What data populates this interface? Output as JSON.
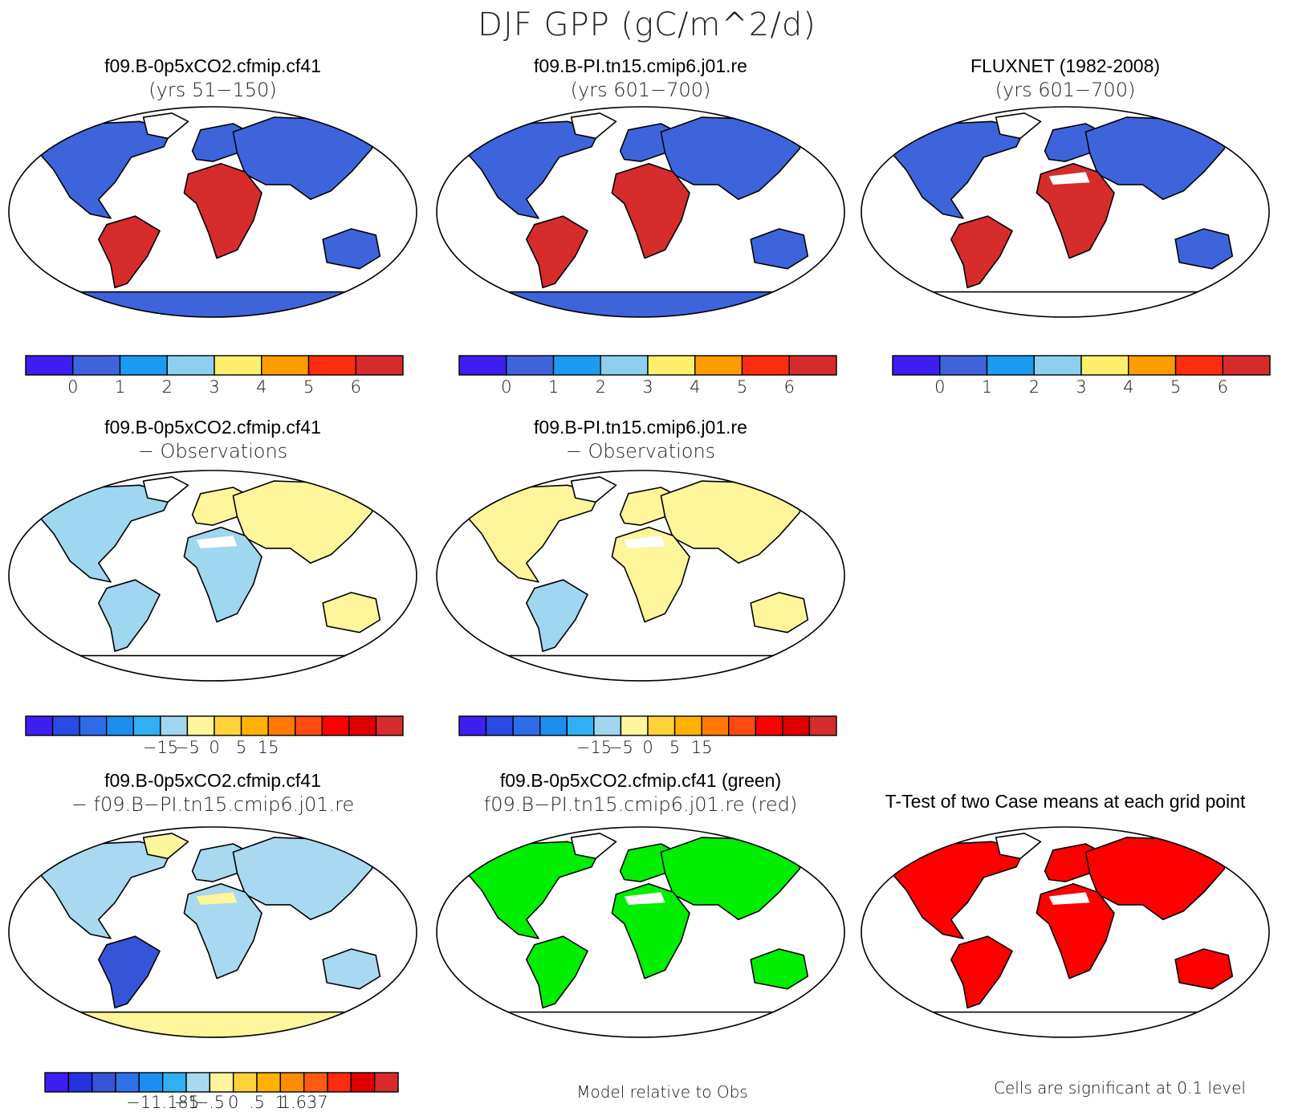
{
  "title": "DJF GPP (gC/m^2/d)",
  "palettes": {
    "abs": [
      "#3e1ef0",
      "#3e64dc",
      "#1c9bf0",
      "#8ccfee",
      "#fbef6b",
      "#ff9c00",
      "#ff2d10",
      "#d62c2c"
    ],
    "diff": [
      "#3e1ef0",
      "#2a4ae6",
      "#2d6be8",
      "#1c8ef0",
      "#2fb0f4",
      "#9fd6f0",
      "#fff59a",
      "#ffd23a",
      "#ffb100",
      "#ff7a00",
      "#ff4a10",
      "#ff0000",
      "#e00000",
      "#d62c2c"
    ],
    "rel": [
      "#3e1ef0",
      "#2432e0",
      "#3654d8",
      "#2d72e6",
      "#1c8ef0",
      "#2fb0f4",
      "#a8d9f0",
      "#fff59a",
      "#ffd23a",
      "#ffb100",
      "#ff8c00",
      "#ff5a10",
      "#ff2a10",
      "#e00000",
      "#d62c2c"
    ]
  },
  "chart_data": [
    {
      "type": "heatmap",
      "title": "f09.B-0p5xCO2.cfmip.cf41",
      "subtitle": "(yrs 51−150)",
      "colorbar": {
        "palette": "abs",
        "ticks": [
          "0",
          "1",
          "2",
          "3",
          "4",
          "5",
          "6"
        ]
      },
      "fills": {
        "na": "#3e64dc",
        "sa": "#d62c2c",
        "eu": "#3e64dc",
        "af": "#d62c2c",
        "as": "#3e64dc",
        "au": "#3e64dc",
        "gr": "#ffffff",
        "ant": "#3e64dc",
        "sah": null
      }
    },
    {
      "type": "heatmap",
      "title": "f09.B-PI.tn15.cmip6.j01.re",
      "subtitle": "(yrs 601−700)",
      "colorbar": {
        "palette": "abs",
        "ticks": [
          "0",
          "1",
          "2",
          "3",
          "4",
          "5",
          "6"
        ]
      },
      "fills": {
        "na": "#3e64dc",
        "sa": "#d62c2c",
        "eu": "#3e64dc",
        "af": "#d62c2c",
        "as": "#3e64dc",
        "au": "#3e64dc",
        "gr": "#ffffff",
        "ant": "#3e64dc",
        "sah": null
      }
    },
    {
      "type": "heatmap",
      "title": "FLUXNET (1982-2008)",
      "subtitle": "(yrs 601−700)",
      "colorbar": {
        "palette": "abs",
        "ticks": [
          "0",
          "1",
          "2",
          "3",
          "4",
          "5",
          "6"
        ]
      },
      "fills": {
        "na": "#3e64dc",
        "sa": "#d62c2c",
        "eu": "#3e64dc",
        "af": "#d62c2c",
        "as": "#3e64dc",
        "au": "#3e64dc",
        "gr": "#ffffff",
        "ant": "#ffffff",
        "sah": "#ffffff"
      }
    },
    {
      "type": "heatmap",
      "title": "f09.B-0p5xCO2.cfmip.cf41",
      "subtitle": "− Observations",
      "colorbar": {
        "palette": "diff",
        "ticks": [
          "−15",
          "−5",
          "0",
          "5",
          "15"
        ]
      },
      "fills": {
        "na": "#9fd6f0",
        "sa": "#9fd6f0",
        "eu": "#fff59a",
        "af": "#9fd6f0",
        "as": "#fff59a",
        "au": "#fff59a",
        "gr": "#ffffff",
        "ant": "#ffffff",
        "sah": "#ffffff"
      }
    },
    {
      "type": "heatmap",
      "title": "f09.B-PI.tn15.cmip6.j01.re",
      "subtitle": "− Observations",
      "colorbar": {
        "palette": "diff",
        "ticks": [
          "−15",
          "−5",
          "0",
          "5",
          "15"
        ]
      },
      "fills": {
        "na": "#fff59a",
        "sa": "#9fd6f0",
        "eu": "#fff59a",
        "af": "#fff59a",
        "as": "#fff59a",
        "au": "#fff59a",
        "gr": "#ffffff",
        "ant": "#ffffff",
        "sah": "#ffffff"
      }
    },
    {
      "type": "heatmap",
      "title": "f09.B-0p5xCO2.cfmip.cf41",
      "subtitle": "− f09.B−PI.tn15.cmip6.j01.re",
      "colorbar": {
        "palette": "rel",
        "ticks": [
          "−11.185",
          "−1",
          "−.5",
          "0",
          ".5",
          "1",
          "1.637"
        ]
      },
      "fills": {
        "na": "#a8d9f0",
        "sa": "#3654d8",
        "eu": "#a8d9f0",
        "af": "#a8d9f0",
        "as": "#a8d9f0",
        "au": "#a8d9f0",
        "gr": "#fff59a",
        "ant": "#fff59a",
        "sah": "#fff59a"
      }
    },
    {
      "type": "heatmap",
      "title": "f09.B-0p5xCO2.cfmip.cf41 (green)",
      "subtitle": "f09.B−PI.tn15.cmip6.j01.re (red)",
      "footnote": "Model relative to Obs",
      "fills": {
        "na": "#00ee00",
        "sa": "#00ee00",
        "eu": "#00ee00",
        "af": "#00ee00",
        "as": "#00ee00",
        "au": "#00ee00",
        "gr": "#ffffff",
        "ant": "#ffffff",
        "sah": "#ffffff"
      }
    },
    {
      "type": "heatmap",
      "title": "T-Test of two Case means at each grid point",
      "subtitle": "",
      "footnote": "Cells are significant at 0.1 level",
      "fills": {
        "na": "#ff0000",
        "sa": "#ff0000",
        "eu": "#ff0000",
        "af": "#ff0000",
        "as": "#ff0000",
        "au": "#ff0000",
        "gr": "#ffffff",
        "ant": "#ffffff",
        "sah": "#ffffff"
      }
    }
  ]
}
